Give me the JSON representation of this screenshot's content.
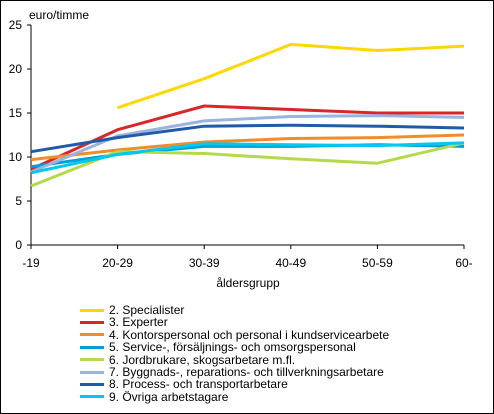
{
  "chart_data": {
    "type": "line",
    "ylabel": "euro/timme",
    "xlabel": "åldersgrupp",
    "categories": [
      "-19",
      "20-29",
      "30-39",
      "40-49",
      "50-59",
      "60-"
    ],
    "ylim": [
      0,
      25
    ],
    "yticks": [
      "0",
      "5",
      "10",
      "15",
      "20",
      "25"
    ],
    "grid": false,
    "legend_position": "bottom",
    "series": [
      {
        "name": "2. Specialister",
        "color": "#FFD700",
        "values": [
          null,
          15.6,
          18.9,
          22.8,
          22.1,
          22.6
        ]
      },
      {
        "name": "3. Experter",
        "color": "#D9262A",
        "values": [
          8.6,
          13.1,
          15.8,
          15.4,
          15.0,
          15.0
        ]
      },
      {
        "name": "4. Kontorspersonal och personal i kundservicearbete",
        "color": "#F08C2A",
        "values": [
          9.7,
          10.8,
          11.7,
          12.1,
          12.2,
          12.5
        ]
      },
      {
        "name": "5. Service-, försäljnings- och omsorgspersonal",
        "color": "#00A0D2",
        "values": [
          8.9,
          10.3,
          11.2,
          11.2,
          11.4,
          11.2
        ]
      },
      {
        "name": "6. Jordbrukare, skogsarbetare m.fl.",
        "color": "#B5D94A",
        "values": [
          6.7,
          10.6,
          10.4,
          9.8,
          9.3,
          11.6
        ]
      },
      {
        "name": "7. Byggnads-, reparations- och tillverkningsarbetare",
        "color": "#9BB3E0",
        "values": [
          8.3,
          12.4,
          14.1,
          14.6,
          14.7,
          14.5
        ]
      },
      {
        "name": "8. Process- och transportarbetare",
        "color": "#1F5BA6",
        "values": [
          10.6,
          12.2,
          13.5,
          13.6,
          13.5,
          13.3
        ]
      },
      {
        "name": "9. Övriga arbetstagare",
        "color": "#00C8F0",
        "values": [
          8.2,
          10.3,
          11.5,
          11.4,
          11.3,
          11.6
        ]
      }
    ]
  }
}
